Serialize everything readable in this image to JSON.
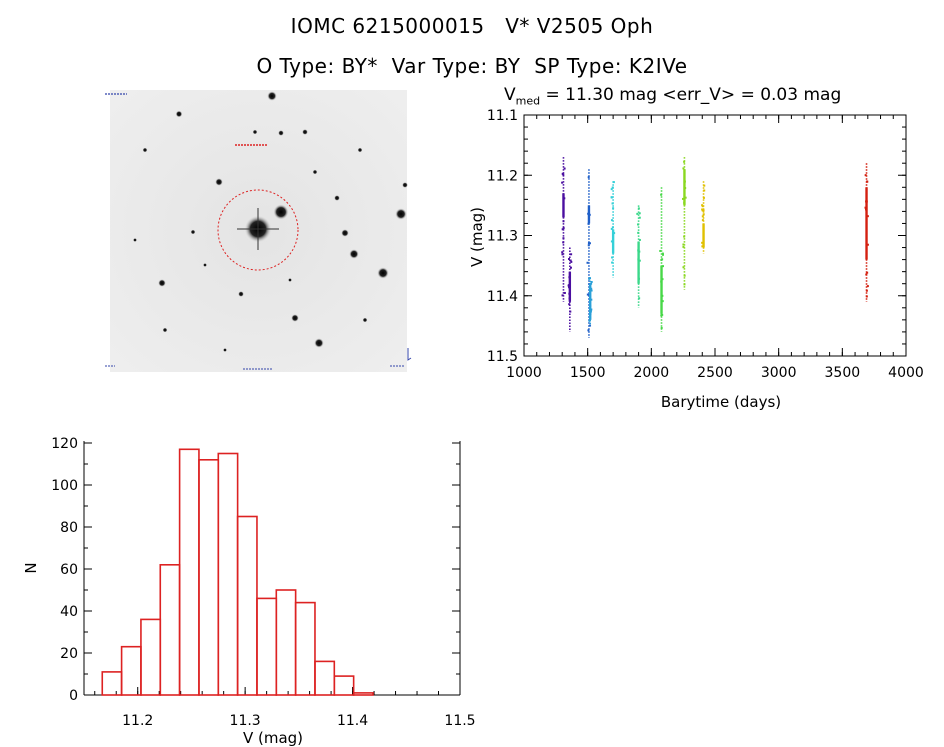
{
  "header": {
    "line1": "IOMC 6215000015   V* V2505 Oph",
    "line2": "O Type: BY*  Var Type: BY  SP Type: K2IVe"
  },
  "stats": {
    "vmed_symbol": "V",
    "vmed_sub": "med",
    "rest": " = 11.30 mag <err_V> = 0.03 mag"
  },
  "colors": {
    "histogram": "#dd2222",
    "target_circle": "#dd2222"
  },
  "chart_data": [
    {
      "type": "scatter",
      "xlabel": "Barytime (days)",
      "ylabel": "V (mag)",
      "xlim": [
        1000,
        4000
      ],
      "ylim": [
        11.5,
        11.1
      ],
      "y_inverted": true,
      "xticks": [
        1000,
        1500,
        2000,
        2500,
        3000,
        3500,
        4000
      ],
      "yticks": [
        11.1,
        11.2,
        11.3,
        11.4,
        11.5
      ],
      "ytick_labels": [
        "11.1",
        "11.2",
        "11.3",
        "11.4",
        "11.5"
      ],
      "series": [
        {
          "color": "#4b0fa0",
          "x": 1310,
          "y_range": [
            11.17,
            11.41
          ],
          "dense": [
            11.23,
            11.27
          ]
        },
        {
          "color": "#4b0fa0",
          "x": 1360,
          "y_range": [
            11.32,
            11.46
          ],
          "dense": [
            11.36,
            11.41
          ]
        },
        {
          "color": "#1f5fc8",
          "x": 1510,
          "y_range": [
            11.19,
            11.47
          ],
          "dense": [
            11.25,
            11.28
          ]
        },
        {
          "color": "#2aa0d8",
          "x": 1520,
          "y_range": [
            11.37,
            11.45
          ],
          "dense": [
            11.38,
            11.44
          ]
        },
        {
          "color": "#35d0d8",
          "x": 1700,
          "y_range": [
            11.21,
            11.37
          ],
          "dense": [
            11.29,
            11.33
          ]
        },
        {
          "color": "#3bd88a",
          "x": 1900,
          "y_range": [
            11.25,
            11.42
          ],
          "dense": [
            11.31,
            11.38
          ]
        },
        {
          "color": "#48d848",
          "x": 2080,
          "y_range": [
            11.22,
            11.46
          ],
          "dense": [
            11.35,
            11.43
          ]
        },
        {
          "color": "#8ad820",
          "x": 2260,
          "y_range": [
            11.17,
            11.39
          ],
          "dense": [
            11.19,
            11.25
          ]
        },
        {
          "color": "#e0c000",
          "x": 2410,
          "y_range": [
            11.21,
            11.33
          ],
          "dense": [
            11.28,
            11.32
          ]
        },
        {
          "color": "#d42010",
          "x": 3690,
          "y_range": [
            11.18,
            11.41
          ],
          "dense": [
            11.22,
            11.34
          ]
        }
      ]
    },
    {
      "type": "bar",
      "xlabel": "V (mag)",
      "ylabel": "N",
      "xlim": [
        11.15,
        11.5
      ],
      "ylim": [
        0,
        120
      ],
      "xticks": [
        11.2,
        11.3,
        11.4,
        11.5
      ],
      "xtick_labels": [
        "11.2",
        "11.3",
        "11.4",
        "11.5"
      ],
      "yticks": [
        0,
        20,
        40,
        60,
        80,
        100,
        120
      ],
      "bin_edges": [
        11.167,
        11.185,
        11.203,
        11.221,
        11.239,
        11.257,
        11.275,
        11.293,
        11.311,
        11.329,
        11.347,
        11.365,
        11.383,
        11.401,
        11.419,
        11.437,
        11.455,
        11.473
      ],
      "values": [
        11,
        23,
        36,
        62,
        117,
        112,
        115,
        85,
        46,
        50,
        44,
        16,
        9,
        1,
        0,
        0,
        0
      ]
    }
  ]
}
